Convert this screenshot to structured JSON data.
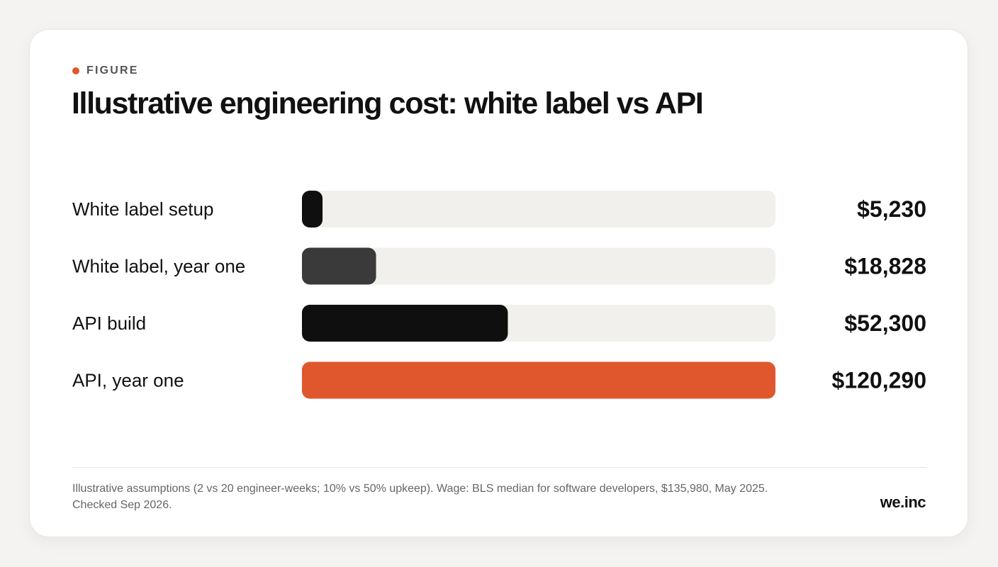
{
  "figure": {
    "eyebrow": "FIGURE",
    "accent_color": "#e0572d",
    "title": "Illustrative engineering cost: white label vs API",
    "note": "Illustrative assumptions (2 vs 20 engineer-weeks; 10% vs 50% upkeep). Wage: BLS median for software developers, $135,980, May 2025. Checked Sep 2026.",
    "brand": "we.inc"
  },
  "chart_data": {
    "type": "bar",
    "orientation": "horizontal",
    "title": "Illustrative engineering cost: white label vs API",
    "categories": [
      "White label setup",
      "White label, year one",
      "API build",
      "API, year one"
    ],
    "values": [
      5230,
      18828,
      52300,
      120290
    ],
    "value_labels": [
      "$5,230",
      "$18,828",
      "$52,300",
      "$120,290"
    ],
    "bar_colors": [
      "#0f0f0f",
      "#3a3a3a",
      "#0f0f0f",
      "#e0572d"
    ],
    "track_color": "#f1f0ec",
    "xlim": [
      0,
      120290
    ],
    "grid": false,
    "legend": "none"
  }
}
